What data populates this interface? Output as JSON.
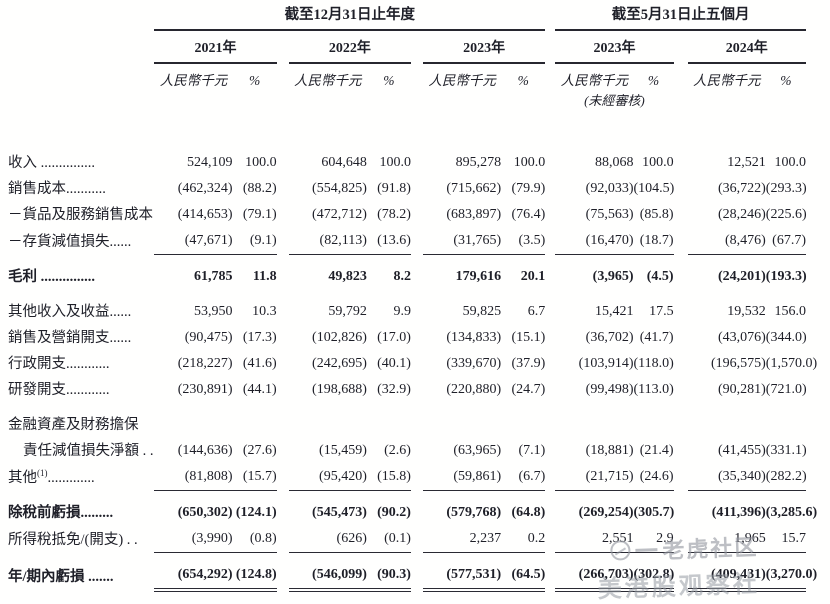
{
  "header": {
    "group_annual": {
      "title": "截至12月31日止年度",
      "years": [
        "2021年",
        "2022年",
        "2023年"
      ]
    },
    "group_fivemonth": {
      "title": "截至5月31日止五個月",
      "years": [
        "2023年",
        "2024年"
      ]
    },
    "unit_label": "人民幣千元",
    "pct_label": "%",
    "unaudited": "(未經審核)"
  },
  "rows": [
    {
      "label": "收入 ...............",
      "values": [
        "524,109",
        "100.0",
        "604,648",
        "100.0",
        "895,278",
        "100.0",
        "88,068",
        "100.0",
        "12,521",
        "100.0"
      ]
    },
    {
      "label": "銷售成本...........",
      "values": [
        "(462,324)",
        "(88.2)",
        "(554,825)",
        "(91.8)",
        "(715,662)",
        "(79.9)",
        "(92,033)",
        "(104.5)",
        "(36,722)",
        "(293.3)"
      ]
    },
    {
      "label": "－貨品及服務銷售成本",
      "values": [
        "(414,653)",
        "(79.1)",
        "(472,712)",
        "(78.2)",
        "(683,897)",
        "(76.4)",
        "(75,563)",
        "(85.8)",
        "(28,246)",
        "(225.6)"
      ]
    },
    {
      "label": "－存貨減值損失......",
      "rule": "single",
      "values": [
        "(47,671)",
        "(9.1)",
        "(82,113)",
        "(13.6)",
        "(31,765)",
        "(3.5)",
        "(16,470)",
        "(18.7)",
        "(8,476)",
        "(67.7)"
      ]
    },
    {
      "label": "毛利 ...............",
      "bold": true,
      "gap": true,
      "values": [
        "61,785",
        "11.8",
        "49,823",
        "8.2",
        "179,616",
        "20.1",
        "(3,965)",
        "(4.5)",
        "(24,201)",
        "(193.3)"
      ]
    },
    {
      "label": "其他收入及收益......",
      "gap": true,
      "values": [
        "53,950",
        "10.3",
        "59,792",
        "9.9",
        "59,825",
        "6.7",
        "15,421",
        "17.5",
        "19,532",
        "156.0"
      ]
    },
    {
      "label": "銷售及營銷開支......",
      "values": [
        "(90,475)",
        "(17.3)",
        "(102,826)",
        "(17.0)",
        "(134,833)",
        "(15.1)",
        "(36,702)",
        "(41.7)",
        "(43,076)",
        "(344.0)"
      ]
    },
    {
      "label": "行政開支............",
      "values": [
        "(218,227)",
        "(41.6)",
        "(242,695)",
        "(40.1)",
        "(339,670)",
        "(37.9)",
        "(103,914)",
        "(118.0)",
        "(196,575)",
        "(1,570.0)"
      ]
    },
    {
      "label": "研發開支............",
      "values": [
        "(230,891)",
        "(44.1)",
        "(198,688)",
        "(32.9)",
        "(220,880)",
        "(24.7)",
        "(99,498)",
        "(113.0)",
        "(90,281)",
        "(721.0)"
      ]
    },
    {
      "label": "金融資產及財務擔保",
      "label2": "責任減值損失淨額 . .",
      "gap": true,
      "values": [
        "(144,636)",
        "(27.6)",
        "(15,459)",
        "(2.6)",
        "(63,965)",
        "(7.1)",
        "(18,881)",
        "(21.4)",
        "(41,455)",
        "(331.1)"
      ]
    },
    {
      "label": "其他",
      "sup": "(1)",
      "leader": ".............",
      "rule": "single",
      "values": [
        "(81,808)",
        "(15.7)",
        "(95,420)",
        "(15.8)",
        "(59,861)",
        "(6.7)",
        "(21,715)",
        "(24.6)",
        "(35,340)",
        "(282.2)"
      ]
    },
    {
      "label": "除稅前虧損.........",
      "bold": true,
      "gap": true,
      "values": [
        "(650,302)",
        "(124.1)",
        "(545,473)",
        "(90.2)",
        "(579,768)",
        "(64.8)",
        "(269,254)",
        "(305.7)",
        "(411,396)",
        "(3,285.6)"
      ]
    },
    {
      "label": "所得稅抵免/(開支) . .",
      "rule": "single",
      "values": [
        "(3,990)",
        "(0.8)",
        "(626)",
        "(0.1)",
        "2,237",
        "0.2",
        "2,551",
        "2.9",
        "1,965",
        "15.7"
      ]
    },
    {
      "label": "年/期內虧損 .......",
      "bold": true,
      "gap": true,
      "rule": "double",
      "values": [
        "(654,292)",
        "(124.8)",
        "(546,099)",
        "(90.3)",
        "(577,531)",
        "(64.5)",
        "(266,703)",
        "(302.8)",
        "(409,431)",
        "(3,270.0)"
      ]
    }
  ],
  "watermark": {
    "icon": "tiger-logo-icon",
    "line1": "老虎社区",
    "line2": "美港股观察社"
  },
  "colors": {
    "text": "#1e1f28",
    "rule": "#2a2a33",
    "background": "#ffffff",
    "watermark": "#949aa0"
  }
}
